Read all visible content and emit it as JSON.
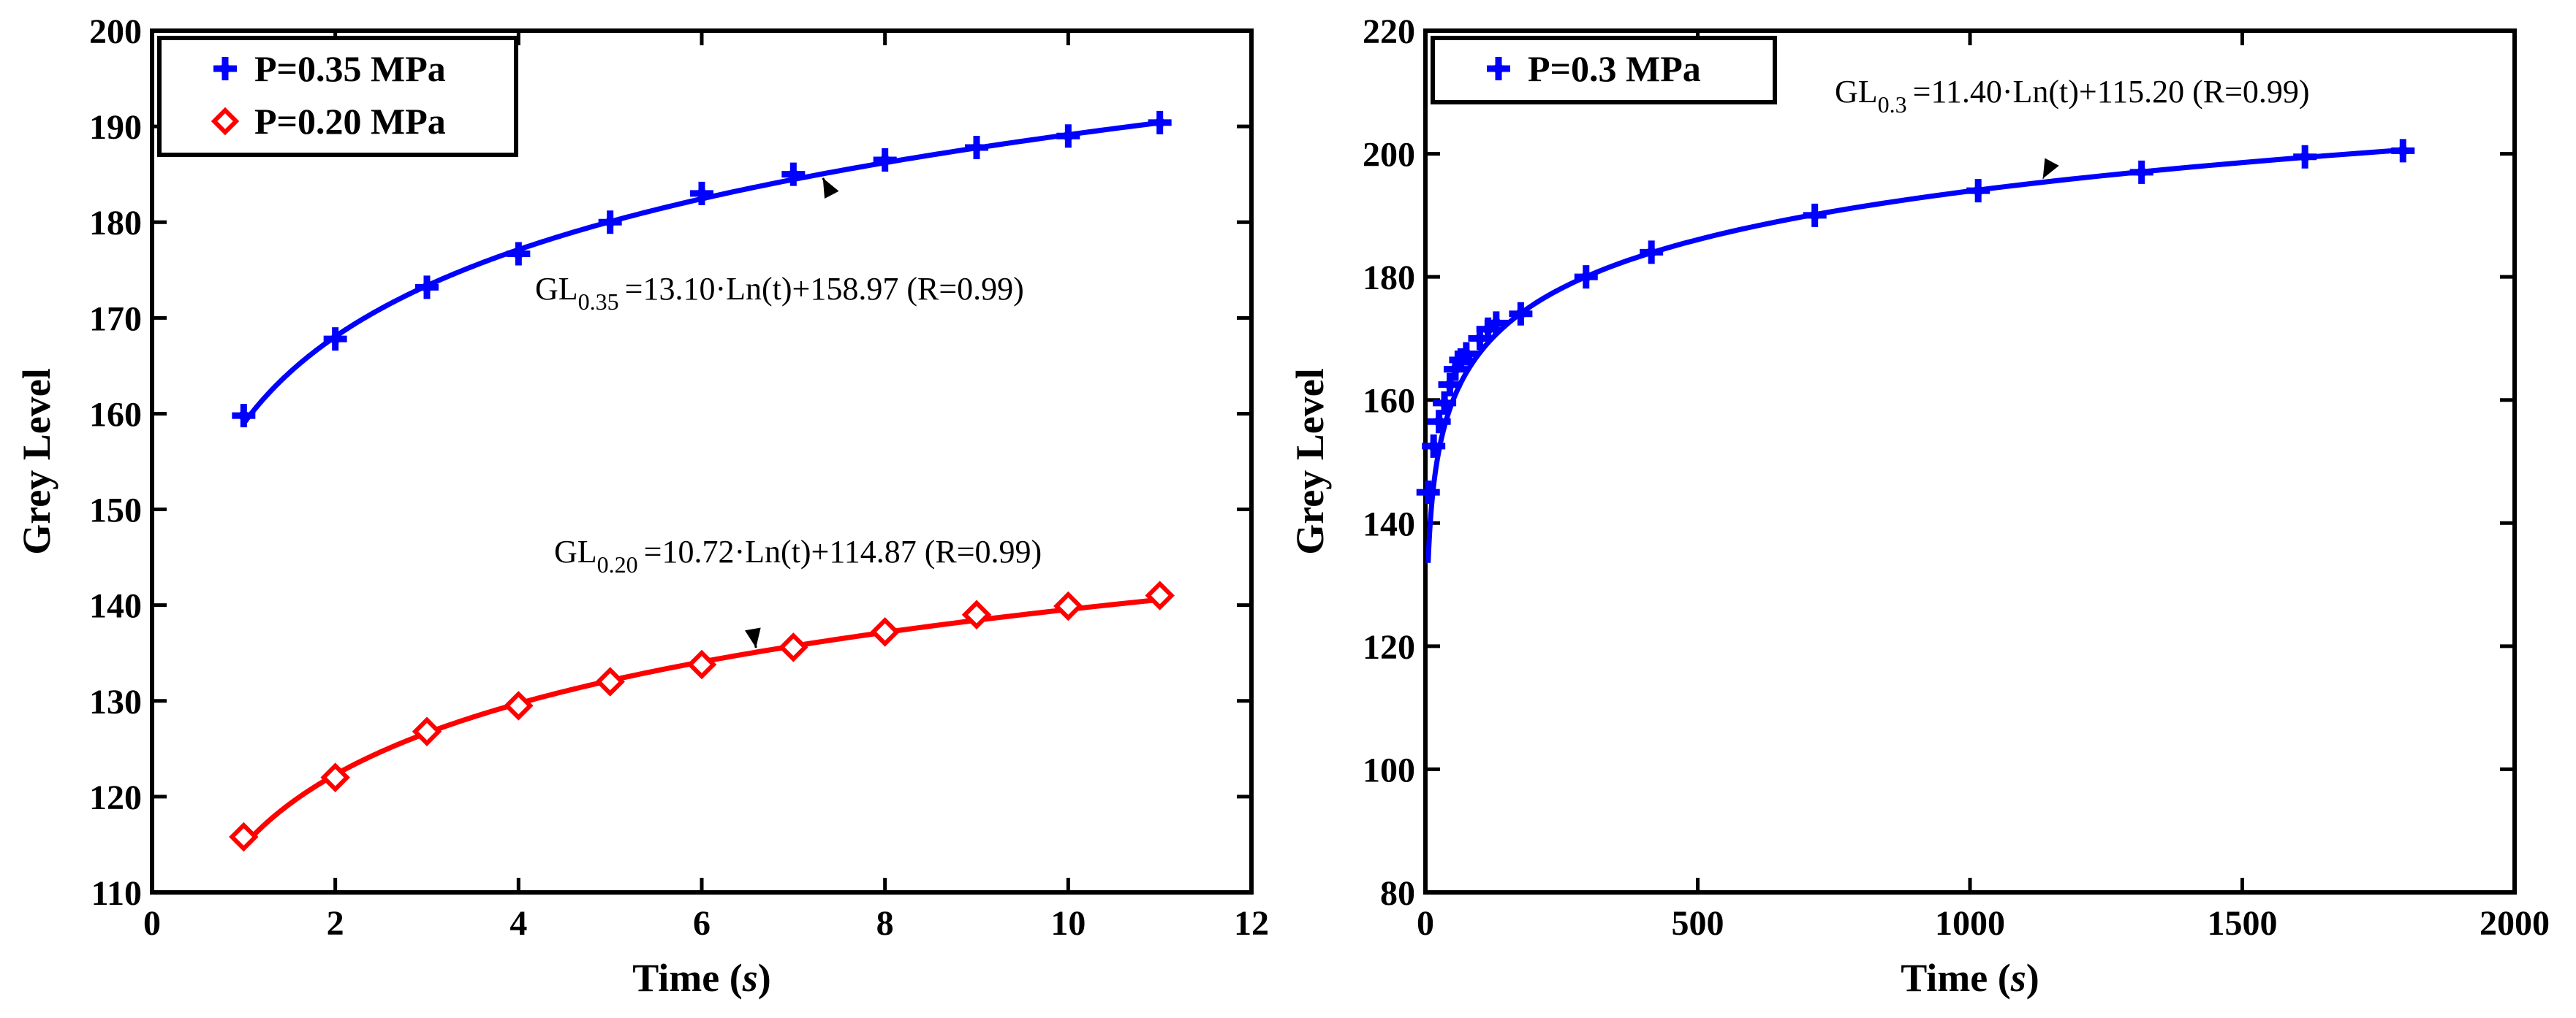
{
  "chart_data": [
    {
      "type": "line",
      "xlabel": "Time",
      "xlabel_unit": "s",
      "ylabel": "Grey Level",
      "xlim": [
        0,
        12
      ],
      "ylim": [
        110,
        200
      ],
      "xticks": [
        0,
        2,
        4,
        6,
        8,
        10,
        12
      ],
      "yticks": [
        110,
        120,
        130,
        140,
        150,
        160,
        170,
        180,
        190,
        200
      ],
      "legend_position": "top-left",
      "series": [
        {
          "name": "P=0.35 MPa",
          "marker": "plus",
          "color": "#0000ff",
          "x": [
            1,
            2,
            3,
            4,
            5,
            6,
            7,
            8,
            9,
            10,
            11
          ],
          "y": [
            159.8,
            167.8,
            173.2,
            176.7,
            180.0,
            183.0,
            185.0,
            186.5,
            187.8,
            189.0,
            190.4
          ],
          "fit": {
            "a": 13.1,
            "b": 158.97
          }
        },
        {
          "name": "P=0.20 MPa",
          "marker": "diamond",
          "color": "#ff0000",
          "x": [
            1,
            2,
            3,
            4,
            5,
            6,
            7,
            8,
            9,
            10,
            11
          ],
          "y": [
            115.8,
            122.0,
            126.8,
            129.5,
            132.0,
            133.8,
            135.6,
            137.2,
            139.0,
            139.9,
            141.0
          ],
          "fit": {
            "a": 10.72,
            "b": 114.87
          }
        }
      ],
      "annotations": [
        {
          "series": 0,
          "main": "GL",
          "sub": "0.35",
          "text": "=13.10·Ln(t)+158.97 (R=0.99)",
          "arrow_x": 7.3
        },
        {
          "series": 1,
          "main": "GL",
          "sub": "0.20",
          "text": "=10.72·Ln(t)+114.87 (R=0.99)",
          "arrow_x": 6.6
        }
      ]
    },
    {
      "type": "line",
      "xlabel": "Time",
      "xlabel_unit": "s",
      "ylabel": "Grey Level",
      "xlim": [
        0,
        2000
      ],
      "ylim": [
        80,
        220
      ],
      "xticks": [
        0,
        500,
        1000,
        1500,
        2000
      ],
      "yticks": [
        80,
        100,
        120,
        140,
        160,
        180,
        200,
        220
      ],
      "legend_position": "top-left",
      "series": [
        {
          "name": "P=0.3 MPa",
          "marker": "plus",
          "color": "#0000ff",
          "x": [
            5,
            15,
            25,
            35,
            45,
            55,
            65,
            75,
            100,
            115,
            130,
            175,
            295,
            415,
            715,
            1015,
            1315,
            1615,
            1795
          ],
          "y": [
            145,
            152.5,
            156.5,
            159.5,
            162.5,
            165,
            166.5,
            167.5,
            170,
            171.5,
            172.5,
            174,
            180,
            184,
            190,
            194,
            197,
            199.5,
            200.5
          ],
          "fit": {
            "a": 11.4,
            "b": 115.2
          }
        }
      ],
      "annotations": [
        {
          "series": 0,
          "main": "GL",
          "sub": "0.3",
          "text": "=11.40·Ln(t)+115.20 (R=0.99)",
          "arrow_x": 1130
        }
      ]
    }
  ]
}
